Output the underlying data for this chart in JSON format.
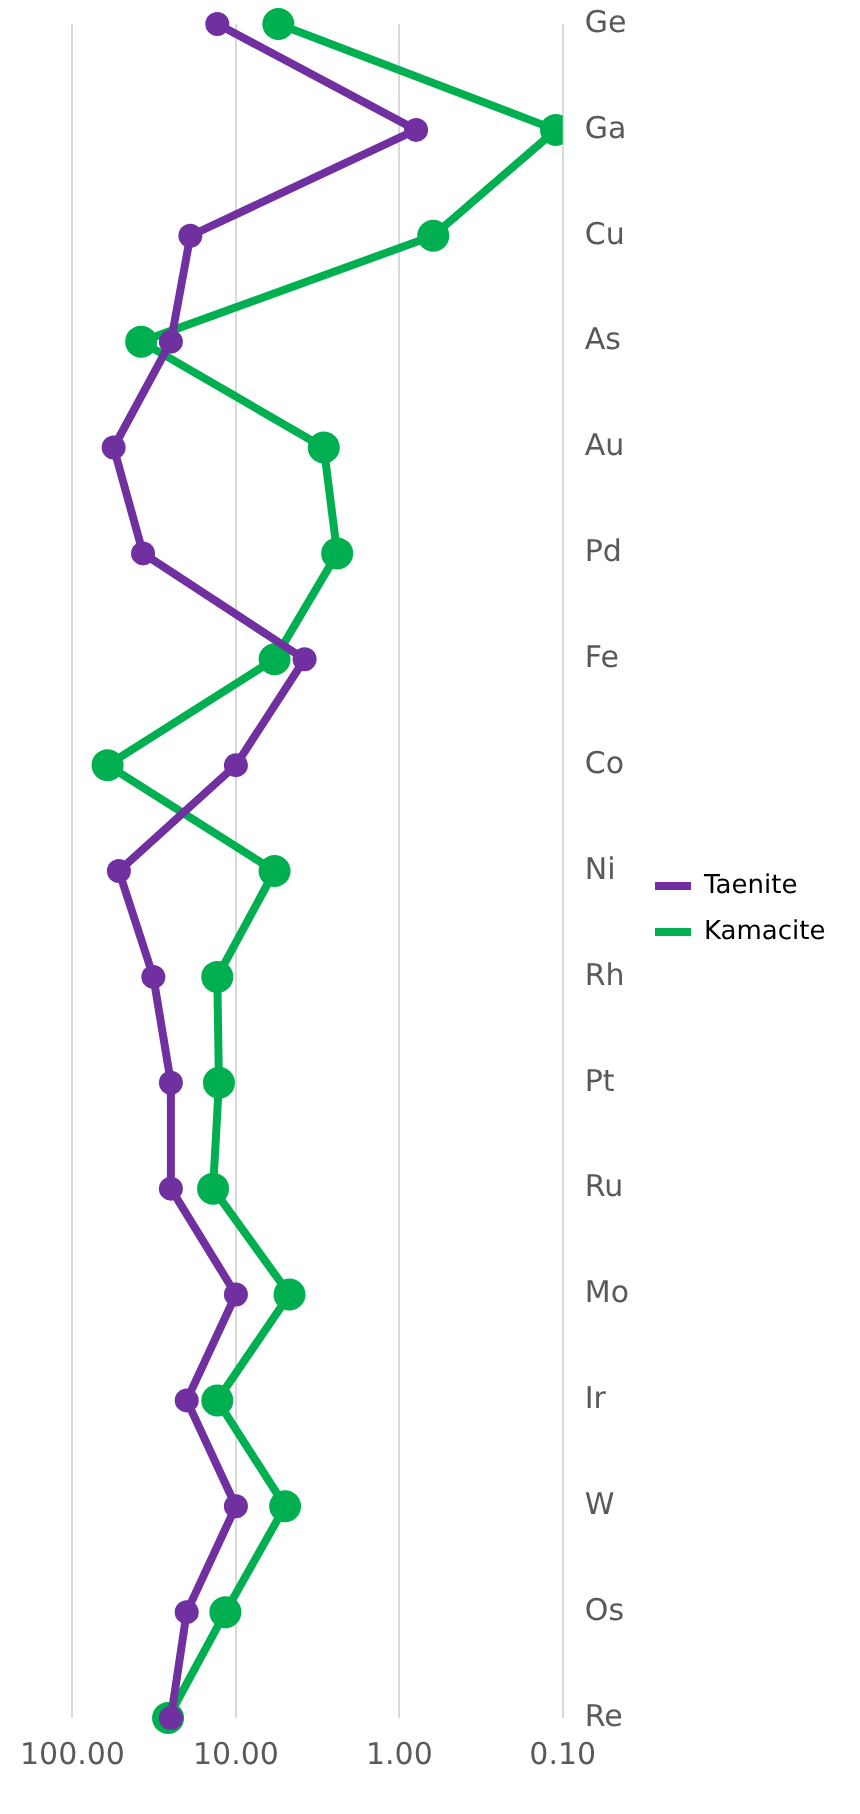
{
  "chart_data": {
    "type": "line",
    "orientation": "horizontal",
    "categories": [
      "Ge",
      "Ga",
      "Cu",
      "As",
      "Au",
      "Pd",
      "Fe",
      "Co",
      "Ni",
      "Rh",
      "Pt",
      "Ru",
      "Mo",
      "Ir",
      "W",
      "Os",
      "Re"
    ],
    "series": [
      {
        "name": "Taenite",
        "color": "#7030a0",
        "values": [
          13,
          0.79,
          19,
          25,
          56,
          37,
          3.8,
          10,
          52,
          32,
          25,
          25,
          10,
          20,
          10,
          20,
          25
        ]
      },
      {
        "name": "Kamacite",
        "color": "#00b050",
        "values": [
          5.5,
          0.11,
          0.62,
          38,
          2.9,
          2.4,
          5.8,
          61,
          5.8,
          13,
          12.7,
          13.8,
          4.7,
          13,
          5,
          11.6,
          26
        ]
      }
    ],
    "log": "x",
    "xlim": [
      100,
      0.1
    ],
    "xticks": [
      {
        "value": 100,
        "label": "100.00"
      },
      {
        "value": 10,
        "label": "10.00"
      },
      {
        "value": 1,
        "label": "1.00"
      },
      {
        "value": 0.1,
        "label": "0.10"
      }
    ],
    "grid": "x",
    "legend": "right",
    "marker": "circle",
    "line_style": "solid"
  }
}
